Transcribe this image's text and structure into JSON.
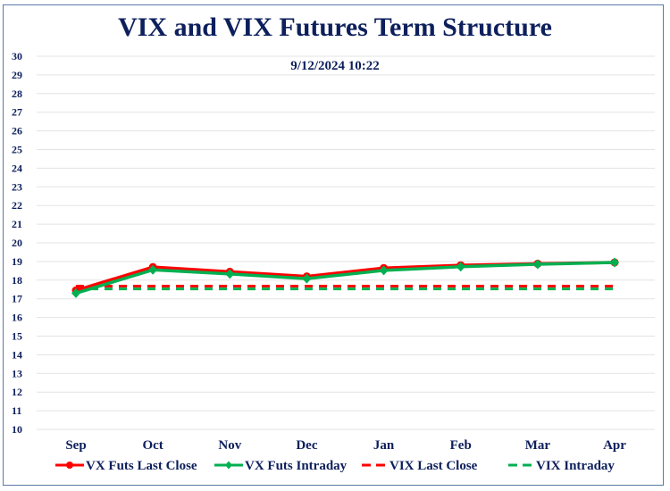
{
  "chart_data": {
    "type": "line",
    "title": "VIX and VIX Futures Term Structure",
    "subtitle": "9/12/2024 10:22",
    "xlabel": "",
    "ylabel": "",
    "categories": [
      "Sep",
      "Oct",
      "Nov",
      "Dec",
      "Jan",
      "Feb",
      "Mar",
      "Apr"
    ],
    "ylim": [
      10,
      30
    ],
    "yticks": [
      10,
      11,
      12,
      13,
      14,
      15,
      16,
      17,
      18,
      19,
      20,
      21,
      22,
      23,
      24,
      25,
      26,
      27,
      28,
      29,
      30
    ],
    "grid": true,
    "legend_position": "bottom",
    "series": [
      {
        "name": "VX Futs Last Close",
        "style": "solid-marker-circle",
        "color": "#ff0000",
        "values": [
          17.45,
          18.7,
          18.45,
          18.2,
          18.65,
          18.8,
          18.88,
          18.95
        ]
      },
      {
        "name": "VX Futs Intraday",
        "style": "solid-marker-diamond",
        "color": "#00b050",
        "values": [
          17.3,
          18.55,
          18.33,
          18.08,
          18.52,
          18.72,
          18.85,
          18.95
        ]
      },
      {
        "name": "VIX Last Close",
        "style": "dashed",
        "color": "#ff0000",
        "values": [
          17.68,
          17.68,
          17.68,
          17.68,
          17.68,
          17.68,
          17.68,
          17.68
        ]
      },
      {
        "name": "VIX Intraday",
        "style": "dashed",
        "color": "#00b050",
        "values": [
          17.53,
          17.53,
          17.53,
          17.53,
          17.53,
          17.53,
          17.53,
          17.53
        ]
      }
    ]
  }
}
